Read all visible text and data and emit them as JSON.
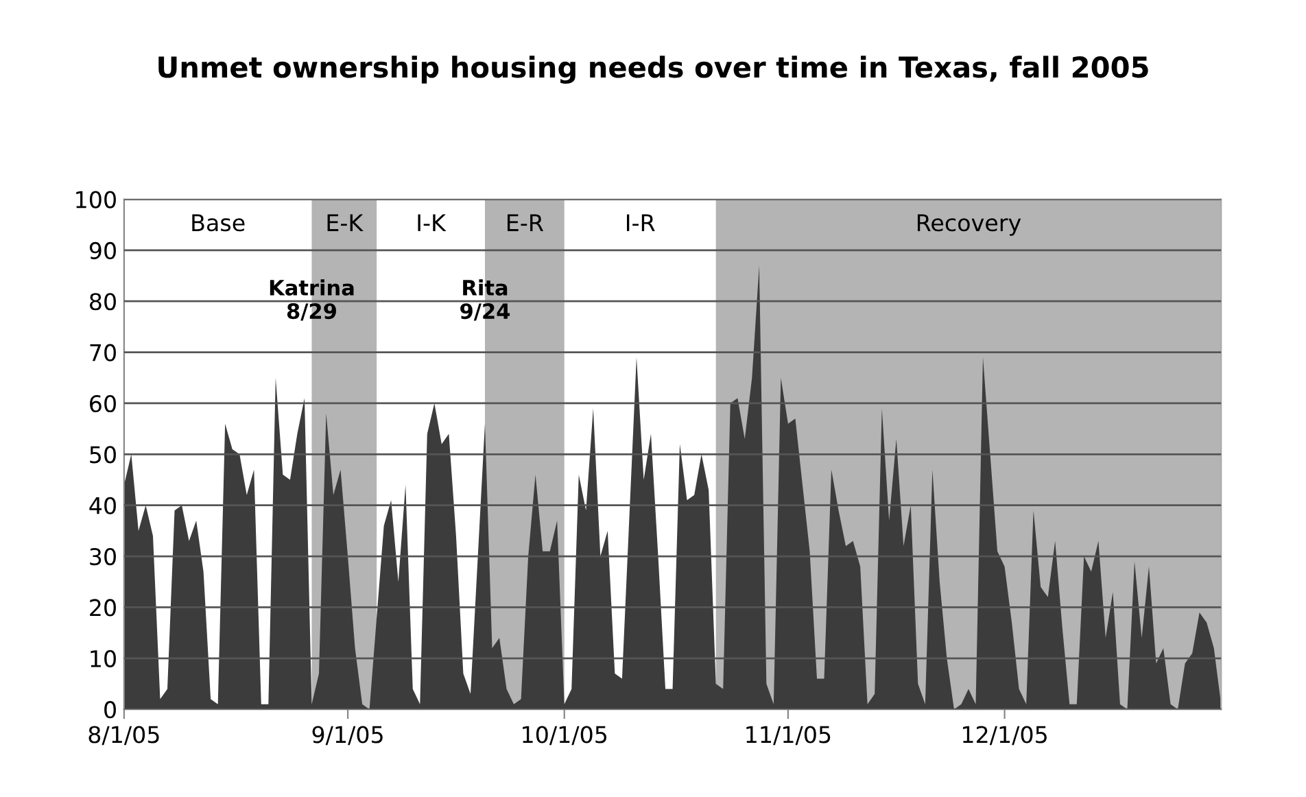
{
  "chart_data": {
    "type": "area",
    "title": "Unmet ownership housing needs over time in Texas, fall 2005",
    "x": [
      "2005-08-01",
      "2005-08-02",
      "2005-08-03",
      "2005-08-04",
      "2005-08-05",
      "2005-08-06",
      "2005-08-07",
      "2005-08-08",
      "2005-08-09",
      "2005-08-10",
      "2005-08-11",
      "2005-08-12",
      "2005-08-13",
      "2005-08-14",
      "2005-08-15",
      "2005-08-16",
      "2005-08-17",
      "2005-08-18",
      "2005-08-19",
      "2005-08-20",
      "2005-08-21",
      "2005-08-22",
      "2005-08-23",
      "2005-08-24",
      "2005-08-25",
      "2005-08-26",
      "2005-08-27",
      "2005-08-28",
      "2005-08-29",
      "2005-08-30",
      "2005-08-31",
      "2005-09-01",
      "2005-09-02",
      "2005-09-03",
      "2005-09-04",
      "2005-09-06",
      "2005-09-07",
      "2005-09-08",
      "2005-09-09",
      "2005-09-10",
      "2005-09-11",
      "2005-09-12",
      "2005-09-13",
      "2005-09-14",
      "2005-09-15",
      "2005-09-16",
      "2005-09-17",
      "2005-09-18",
      "2005-09-20",
      "2005-09-21",
      "2005-09-22",
      "2005-09-23",
      "2005-09-24",
      "2005-09-25",
      "2005-09-26",
      "2005-09-27",
      "2005-09-28",
      "2005-09-29",
      "2005-09-30",
      "2005-10-01",
      "2005-10-02",
      "2005-10-03",
      "2005-10-04",
      "2005-10-05",
      "2005-10-06",
      "2005-10-07",
      "2005-10-08",
      "2005-10-09",
      "2005-10-11",
      "2005-10-12",
      "2005-10-13",
      "2005-10-14",
      "2005-10-15",
      "2005-10-16",
      "2005-10-17",
      "2005-10-18",
      "2005-10-19",
      "2005-10-20",
      "2005-10-21",
      "2005-10-22",
      "2005-10-23",
      "2005-10-24",
      "2005-10-25",
      "2005-10-26",
      "2005-10-27",
      "2005-10-28",
      "2005-10-29",
      "2005-10-30",
      "2005-10-31",
      "2005-11-01",
      "2005-11-02",
      "2005-11-04",
      "2005-11-05",
      "2005-11-06",
      "2005-11-07",
      "2005-11-08",
      "2005-11-09",
      "2005-11-10",
      "2005-11-11",
      "2005-11-12",
      "2005-11-13",
      "2005-11-14",
      "2005-11-15",
      "2005-11-16",
      "2005-11-17",
      "2005-11-18",
      "2005-11-19",
      "2005-11-20",
      "2005-11-21",
      "2005-11-22",
      "2005-11-23",
      "2005-11-24",
      "2005-11-25",
      "2005-11-26",
      "2005-11-27",
      "2005-11-28",
      "2005-11-29",
      "2005-11-30",
      "2005-12-01",
      "2005-12-02",
      "2005-12-03",
      "2005-12-04",
      "2005-12-05",
      "2005-12-06",
      "2005-12-07",
      "2005-12-08",
      "2005-12-09",
      "2005-12-10",
      "2005-12-11",
      "2005-12-12",
      "2005-12-13",
      "2005-12-14",
      "2005-12-15",
      "2005-12-16",
      "2005-12-17",
      "2005-12-18",
      "2005-12-19",
      "2005-12-20",
      "2005-12-21",
      "2005-12-22",
      "2005-12-23",
      "2005-12-24",
      "2005-12-25",
      "2005-12-26",
      "2005-12-27",
      "2005-12-28",
      "2005-12-29",
      "2005-12-30",
      "2005-12-31"
    ],
    "series": [
      {
        "color": "#3c3c3c",
        "values": [
          44,
          50,
          35,
          40,
          34,
          2,
          4,
          39,
          40,
          33,
          37,
          27,
          2,
          1,
          56,
          51,
          50,
          42,
          47,
          1,
          1,
          65,
          46,
          45,
          54,
          61,
          1,
          7,
          58,
          42,
          47,
          30,
          12,
          1,
          0,
          36,
          41,
          25,
          44,
          4,
          1,
          54,
          60,
          52,
          54,
          34,
          7,
          3,
          56,
          12,
          14,
          4,
          1,
          2,
          30,
          46,
          31,
          31,
          37,
          1,
          4,
          46,
          39,
          59,
          30,
          35,
          7,
          6,
          69,
          45,
          54,
          30,
          4,
          4,
          52,
          41,
          42,
          50,
          43,
          5,
          4,
          60,
          61,
          53,
          65,
          87,
          5,
          1,
          65,
          56,
          57,
          31,
          6,
          6,
          47,
          39,
          32,
          33,
          28,
          1,
          3,
          59,
          37,
          53,
          32,
          40,
          5,
          1,
          47,
          25,
          10,
          0,
          1,
          4,
          1,
          69,
          50,
          31,
          28,
          17,
          4,
          1,
          39,
          24,
          22,
          33,
          16,
          1,
          1,
          30,
          27,
          33,
          14,
          23,
          1,
          0,
          29,
          14,
          28,
          9,
          12,
          1,
          0,
          9,
          11,
          19,
          17,
          12,
          1
        ]
      }
    ],
    "xlim": [
      "2005-08-01",
      "2005-12-31"
    ],
    "xticks": [
      {
        "value": "2005-08-01",
        "label": "8/1/05"
      },
      {
        "value": "2005-09-01",
        "label": "9/1/05"
      },
      {
        "value": "2005-10-01",
        "label": "10/1/05"
      },
      {
        "value": "2005-11-01",
        "label": "11/1/05"
      },
      {
        "value": "2005-12-01",
        "label": "12/1/05"
      }
    ],
    "ylim": [
      0,
      100
    ],
    "yticks": [
      0,
      10,
      20,
      30,
      40,
      50,
      60,
      70,
      80,
      90,
      100
    ],
    "grid": "y",
    "bands": [
      {
        "axis": "x",
        "from": "2005-08-27",
        "to": "2005-09-05",
        "label": "E-K",
        "color": "#b4b4b4"
      },
      {
        "axis": "x",
        "from": "2005-09-20",
        "to": "2005-10-01",
        "label": "E-R",
        "color": "#b4b4b4"
      },
      {
        "axis": "x",
        "from": "2005-10-22",
        "to": "2005-12-31",
        "label": "Recovery",
        "color": "#b4b4b4"
      }
    ],
    "annotations": [
      "Base",
      "I-K",
      "I-R",
      {
        "text": "Katrina\n8/29",
        "x": "2005-08-27",
        "y": 80
      },
      {
        "text": "Rita\n9/24",
        "x": "2005-09-20",
        "y": 80
      }
    ]
  }
}
